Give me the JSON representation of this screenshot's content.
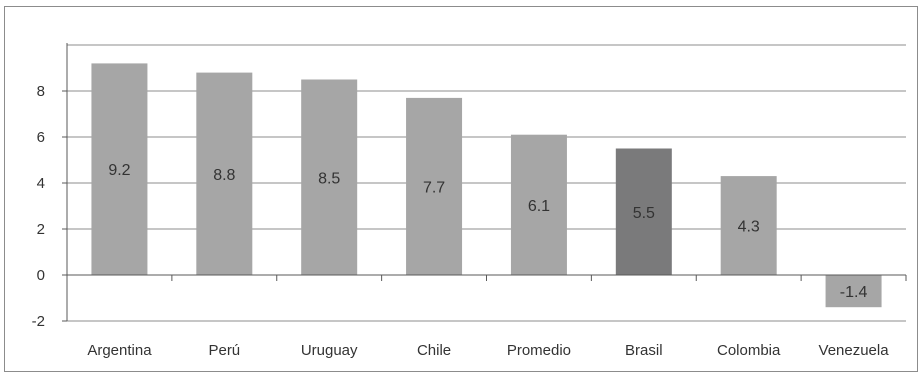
{
  "chart_data": {
    "type": "bar",
    "categories": [
      "Argentina",
      "Perú",
      "Uruguay",
      "Chile",
      "Promedio",
      "Brasil",
      "Colombia",
      "Venezuela"
    ],
    "values": [
      9.2,
      8.8,
      8.5,
      7.7,
      6.1,
      5.5,
      4.3,
      -1.4
    ],
    "value_labels": [
      "9.2",
      "8.8",
      "8.5",
      "7.7",
      "6.1",
      "5.5",
      "4.3",
      "-1.4"
    ],
    "ylim": [
      -2,
      10
    ],
    "yticks": [
      -2,
      0,
      2,
      4,
      6,
      8
    ],
    "ytick_labels": [
      "-2",
      "0",
      "2",
      "4",
      "6",
      "8"
    ],
    "grid": true,
    "legend": "none",
    "title": "",
    "xlabel": "",
    "ylabel": "",
    "colors": {
      "bar": "#a6a6a6",
      "highlight": "#7a7a7b",
      "highlight_category": "Brasil",
      "grid": "#8c8c8c",
      "axis": "#595959",
      "text": "#333333"
    }
  }
}
